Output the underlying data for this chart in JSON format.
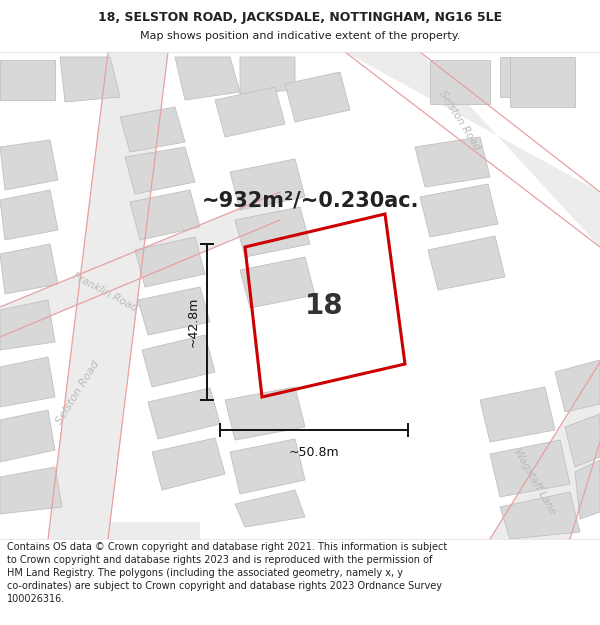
{
  "title_line1": "18, SELSTON ROAD, JACKSDALE, NOTTINGHAM, NG16 5LE",
  "title_line2": "Map shows position and indicative extent of the property.",
  "area_text": "~932m²/~0.230ac.",
  "number_label": "18",
  "dim_height": "~42.8m",
  "dim_width": "~50.8m",
  "footer_text": "Contains OS data © Crown copyright and database right 2021. This information is subject\nto Crown copyright and database rights 2023 and is reproduced with the permission of\nHM Land Registry. The polygons (including the associated geometry, namely x, y\nco-ordinates) are subject to Crown copyright and database rights 2023 Ordnance Survey\n100026316.",
  "bg_color": "#f5f5f2",
  "road_outline": "#e8a0a0",
  "property_outline": "#cc0000",
  "text_color": "#222222",
  "road_label_color": "#bbbbbb",
  "white": "#ffffff",
  "bld_fill": "#d8d8d8",
  "bld_edge": "#c0c0c0",
  "road_fill": "#ececec",
  "dim_color": "#111111",
  "title_fs": 9,
  "subtitle_fs": 8,
  "area_fs": 15,
  "num_fs": 20,
  "dim_fs": 9,
  "footer_fs": 7,
  "road_lw": 0.9,
  "prop_lw": 2.2
}
